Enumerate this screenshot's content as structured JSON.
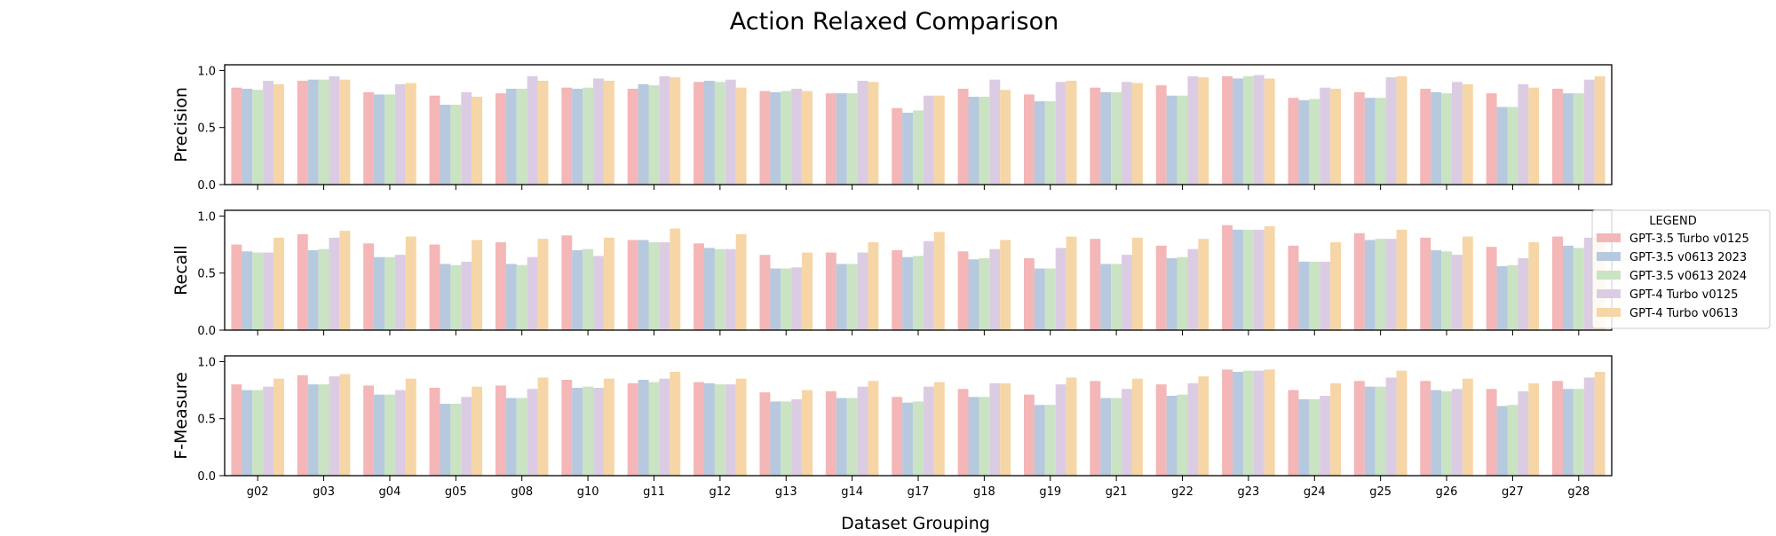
{
  "chart_data": {
    "type": "bar",
    "title": "Action Relaxed Comparison",
    "xlabel": "Dataset Grouping",
    "categories": [
      "g02",
      "g03",
      "g04",
      "g05",
      "g08",
      "g10",
      "g11",
      "g12",
      "g13",
      "g14",
      "g17",
      "g18",
      "g19",
      "g21",
      "g22",
      "g23",
      "g24",
      "g25",
      "g26",
      "g27",
      "g28"
    ],
    "legend": {
      "title": "LEGEND",
      "placement": "right",
      "entries": [
        "GPT-3.5 Turbo v0125",
        "GPT-3.5 v0613 2023",
        "GPT-3.5 v0613 2024",
        "GPT-4 Turbo v0125",
        "GPT-4 Turbo v0613"
      ]
    },
    "series_colors": [
      "#f4b6b6",
      "#b6c9de",
      "#c9e3c3",
      "#dccce3",
      "#f6d6a6"
    ],
    "grid": false,
    "panels": [
      {
        "ylabel": "Precision",
        "ylim": [
          0,
          1.05
        ],
        "yticks": [
          "0.0",
          "0.5",
          "1.0"
        ],
        "series": [
          {
            "name": "GPT-3.5 Turbo v0125",
            "values": [
              0.85,
              0.91,
              0.81,
              0.78,
              0.8,
              0.85,
              0.84,
              0.9,
              0.82,
              0.8,
              0.67,
              0.84,
              0.79,
              0.85,
              0.87,
              0.95,
              0.76,
              0.81,
              0.84,
              0.8,
              0.84
            ]
          },
          {
            "name": "GPT-3.5 v0613 2023",
            "values": [
              0.84,
              0.92,
              0.79,
              0.7,
              0.84,
              0.84,
              0.88,
              0.91,
              0.81,
              0.8,
              0.63,
              0.77,
              0.73,
              0.81,
              0.78,
              0.93,
              0.74,
              0.76,
              0.81,
              0.68,
              0.8
            ]
          },
          {
            "name": "GPT-3.5 v0613 2024",
            "values": [
              0.83,
              0.92,
              0.79,
              0.7,
              0.84,
              0.85,
              0.87,
              0.9,
              0.82,
              0.8,
              0.65,
              0.77,
              0.73,
              0.81,
              0.78,
              0.95,
              0.75,
              0.76,
              0.8,
              0.68,
              0.8
            ]
          },
          {
            "name": "GPT-4 Turbo v0125",
            "values": [
              0.91,
              0.95,
              0.88,
              0.81,
              0.95,
              0.93,
              0.95,
              0.92,
              0.84,
              0.91,
              0.78,
              0.92,
              0.9,
              0.9,
              0.95,
              0.96,
              0.85,
              0.94,
              0.9,
              0.88,
              0.92
            ]
          },
          {
            "name": "GPT-4 Turbo v0613",
            "values": [
              0.88,
              0.92,
              0.89,
              0.77,
              0.91,
              0.91,
              0.94,
              0.85,
              0.82,
              0.9,
              0.78,
              0.83,
              0.91,
              0.89,
              0.94,
              0.93,
              0.84,
              0.95,
              0.88,
              0.85,
              0.95
            ]
          }
        ]
      },
      {
        "ylabel": "Recall",
        "ylim": [
          0,
          1.05
        ],
        "yticks": [
          "0.0",
          "0.5",
          "1.0"
        ],
        "series": [
          {
            "name": "GPT-3.5 Turbo v0125",
            "values": [
              0.75,
              0.84,
              0.76,
              0.75,
              0.77,
              0.83,
              0.79,
              0.76,
              0.66,
              0.68,
              0.7,
              0.69,
              0.63,
              0.8,
              0.74,
              0.92,
              0.74,
              0.85,
              0.81,
              0.73,
              0.82
            ]
          },
          {
            "name": "GPT-3.5 v0613 2023",
            "values": [
              0.69,
              0.7,
              0.64,
              0.58,
              0.58,
              0.7,
              0.79,
              0.72,
              0.54,
              0.58,
              0.64,
              0.62,
              0.54,
              0.58,
              0.63,
              0.88,
              0.6,
              0.79,
              0.7,
              0.56,
              0.74
            ]
          },
          {
            "name": "GPT-3.5 v0613 2024",
            "values": [
              0.68,
              0.71,
              0.64,
              0.57,
              0.57,
              0.71,
              0.77,
              0.71,
              0.54,
              0.58,
              0.65,
              0.63,
              0.54,
              0.58,
              0.64,
              0.88,
              0.6,
              0.8,
              0.69,
              0.57,
              0.72
            ]
          },
          {
            "name": "GPT-4 Turbo v0125",
            "values": [
              0.68,
              0.81,
              0.66,
              0.6,
              0.64,
              0.65,
              0.77,
              0.71,
              0.55,
              0.68,
              0.78,
              0.71,
              0.72,
              0.66,
              0.71,
              0.88,
              0.6,
              0.8,
              0.66,
              0.63,
              0.81
            ]
          },
          {
            "name": "GPT-4 Turbo v0613",
            "values": [
              0.81,
              0.87,
              0.82,
              0.79,
              0.8,
              0.81,
              0.89,
              0.84,
              0.68,
              0.77,
              0.86,
              0.79,
              0.82,
              0.81,
              0.8,
              0.91,
              0.77,
              0.88,
              0.82,
              0.77,
              0.85
            ]
          }
        ]
      },
      {
        "ylabel": "F-Measure",
        "ylim": [
          0,
          1.05
        ],
        "yticks": [
          "0.0",
          "0.5",
          "1.0"
        ],
        "series": [
          {
            "name": "GPT-3.5 Turbo v0125",
            "values": [
              0.8,
              0.88,
              0.79,
              0.77,
              0.79,
              0.84,
              0.81,
              0.82,
              0.73,
              0.74,
              0.69,
              0.76,
              0.71,
              0.83,
              0.8,
              0.93,
              0.75,
              0.83,
              0.83,
              0.76,
              0.83
            ]
          },
          {
            "name": "GPT-3.5 v0613 2023",
            "values": [
              0.75,
              0.8,
              0.71,
              0.63,
              0.68,
              0.77,
              0.84,
              0.81,
              0.65,
              0.68,
              0.64,
              0.69,
              0.62,
              0.68,
              0.7,
              0.91,
              0.67,
              0.78,
              0.75,
              0.61,
              0.76
            ]
          },
          {
            "name": "GPT-3.5 v0613 2024",
            "values": [
              0.75,
              0.8,
              0.71,
              0.63,
              0.68,
              0.78,
              0.82,
              0.8,
              0.65,
              0.68,
              0.65,
              0.69,
              0.62,
              0.68,
              0.71,
              0.92,
              0.67,
              0.78,
              0.74,
              0.62,
              0.76
            ]
          },
          {
            "name": "GPT-4 Turbo v0125",
            "values": [
              0.78,
              0.87,
              0.75,
              0.69,
              0.76,
              0.77,
              0.85,
              0.8,
              0.67,
              0.78,
              0.78,
              0.81,
              0.8,
              0.76,
              0.81,
              0.92,
              0.7,
              0.86,
              0.76,
              0.74,
              0.86
            ]
          },
          {
            "name": "GPT-4 Turbo v0613",
            "values": [
              0.85,
              0.89,
              0.85,
              0.78,
              0.86,
              0.85,
              0.91,
              0.85,
              0.75,
              0.83,
              0.82,
              0.81,
              0.86,
              0.85,
              0.87,
              0.93,
              0.81,
              0.92,
              0.85,
              0.81,
              0.91
            ]
          }
        ]
      }
    ]
  }
}
